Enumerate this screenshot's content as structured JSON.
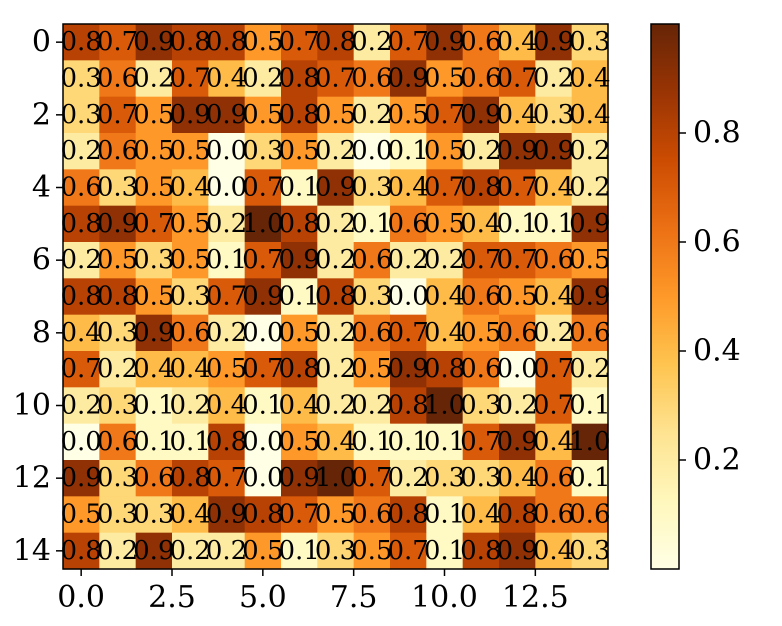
{
  "chart_data": {
    "type": "heatmap",
    "title": "",
    "xlabel": "",
    "ylabel": "",
    "colormap": "YlOrBr",
    "colormap_stops": [
      "#ffffe5",
      "#fff7bc",
      "#fee391",
      "#fec44f",
      "#fe9929",
      "#ec7014",
      "#cc4c02",
      "#993404",
      "#662506"
    ],
    "color_range": [
      0.0,
      1.0
    ],
    "x_range": [
      -0.5,
      14.5
    ],
    "y_range": [
      -0.5,
      14.5
    ],
    "x_ticks": [
      0.0,
      2.5,
      5.0,
      7.5,
      10.0,
      12.5
    ],
    "x_tick_labels": [
      "0.0",
      "2.5",
      "5.0",
      "7.5",
      "10.0",
      "12.5"
    ],
    "y_ticks": [
      0,
      2,
      4,
      6,
      8,
      10,
      12,
      14
    ],
    "y_tick_labels": [
      "0",
      "2",
      "4",
      "6",
      "8",
      "10",
      "12",
      "14"
    ],
    "colorbar_ticks": [
      0.2,
      0.4,
      0.6,
      0.8
    ],
    "colorbar_tick_labels": [
      "0.2",
      "0.4",
      "0.6",
      "0.8"
    ],
    "matrix": [
      [
        0.8,
        0.7,
        0.9,
        0.8,
        0.8,
        0.5,
        0.7,
        0.8,
        0.2,
        0.7,
        0.9,
        0.6,
        0.4,
        0.9,
        0.3
      ],
      [
        0.3,
        0.6,
        0.2,
        0.7,
        0.4,
        0.2,
        0.8,
        0.7,
        0.6,
        0.9,
        0.5,
        0.6,
        0.7,
        0.2,
        0.4
      ],
      [
        0.3,
        0.7,
        0.5,
        0.9,
        0.9,
        0.5,
        0.8,
        0.5,
        0.2,
        0.5,
        0.7,
        0.9,
        0.4,
        0.3,
        0.4
      ],
      [
        0.2,
        0.6,
        0.5,
        0.5,
        0.0,
        0.3,
        0.5,
        0.2,
        0.0,
        0.1,
        0.5,
        0.2,
        0.9,
        0.9,
        0.2
      ],
      [
        0.6,
        0.3,
        0.5,
        0.4,
        0.0,
        0.7,
        0.1,
        0.9,
        0.3,
        0.4,
        0.7,
        0.8,
        0.7,
        0.4,
        0.2
      ],
      [
        0.8,
        0.9,
        0.7,
        0.5,
        0.2,
        1.0,
        0.8,
        0.2,
        0.1,
        0.6,
        0.5,
        0.4,
        0.1,
        0.1,
        0.9
      ],
      [
        0.2,
        0.5,
        0.3,
        0.5,
        0.1,
        0.7,
        0.9,
        0.2,
        0.6,
        0.2,
        0.2,
        0.7,
        0.7,
        0.6,
        0.5
      ],
      [
        0.8,
        0.8,
        0.5,
        0.3,
        0.7,
        0.9,
        0.1,
        0.8,
        0.3,
        0.0,
        0.4,
        0.6,
        0.5,
        0.4,
        0.9
      ],
      [
        0.4,
        0.3,
        0.9,
        0.6,
        0.2,
        0.0,
        0.5,
        0.2,
        0.6,
        0.7,
        0.4,
        0.5,
        0.6,
        0.2,
        0.6
      ],
      [
        0.7,
        0.2,
        0.4,
        0.4,
        0.5,
        0.7,
        0.8,
        0.2,
        0.5,
        0.9,
        0.8,
        0.6,
        0.0,
        0.7,
        0.2
      ],
      [
        0.2,
        0.3,
        0.1,
        0.2,
        0.4,
        0.1,
        0.4,
        0.2,
        0.2,
        0.8,
        1.0,
        0.3,
        0.2,
        0.7,
        0.1
      ],
      [
        0.0,
        0.6,
        0.1,
        0.1,
        0.8,
        0.0,
        0.5,
        0.4,
        0.1,
        0.1,
        0.1,
        0.7,
        0.9,
        0.4,
        1.0
      ],
      [
        0.9,
        0.3,
        0.6,
        0.8,
        0.7,
        0.0,
        0.9,
        1.0,
        0.7,
        0.2,
        0.3,
        0.3,
        0.4,
        0.6,
        0.1
      ],
      [
        0.5,
        0.3,
        0.3,
        0.4,
        0.9,
        0.8,
        0.7,
        0.5,
        0.6,
        0.8,
        0.1,
        0.4,
        0.8,
        0.6,
        0.6
      ],
      [
        0.8,
        0.2,
        0.9,
        0.2,
        0.2,
        0.5,
        0.1,
        0.3,
        0.5,
        0.7,
        0.1,
        0.8,
        0.9,
        0.4,
        0.3
      ]
    ]
  }
}
